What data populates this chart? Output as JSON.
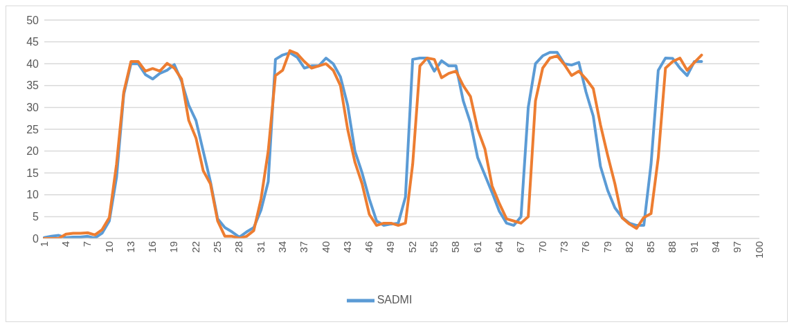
{
  "chart_data": {
    "type": "line",
    "categories": [
      "1",
      null,
      null,
      "4",
      null,
      null,
      "7",
      null,
      null,
      "10",
      null,
      null,
      "13",
      null,
      null,
      "16",
      null,
      null,
      "19",
      null,
      null,
      "22",
      null,
      null,
      "25",
      null,
      null,
      "28",
      null,
      null,
      "31",
      null,
      null,
      "34",
      null,
      null,
      "37",
      null,
      null,
      "40",
      null,
      null,
      "43",
      null,
      null,
      "46",
      null,
      null,
      "49",
      null,
      null,
      "52",
      null,
      null,
      "55",
      null,
      null,
      "58",
      null,
      null,
      "61",
      null,
      null,
      "64",
      null,
      null,
      "67",
      null,
      null,
      "70",
      null,
      null,
      "73",
      null,
      null,
      "76",
      null,
      null,
      "79",
      null,
      null,
      "82",
      null,
      null,
      "85",
      null,
      null,
      "88",
      null,
      null,
      "91",
      null,
      null,
      "94",
      null,
      null,
      "97",
      null,
      null,
      "100"
    ],
    "series": [
      {
        "name": "SADMI",
        "color": "#5b9bd5",
        "values": [
          0.2,
          0.5,
          0.7,
          0.2,
          0.3,
          0.3,
          0.5,
          0.1,
          1.2,
          4,
          14,
          33,
          40,
          40,
          37.5,
          36.5,
          37.8,
          38.5,
          39.8,
          36,
          30.5,
          27,
          20,
          13,
          4.5,
          2.5,
          1.5,
          0.3,
          1.5,
          2.5,
          6.5,
          13,
          41,
          42,
          42.5,
          41.5,
          39,
          39.5,
          39.5,
          41.3,
          40,
          37,
          30.5,
          20,
          15,
          9,
          4,
          3,
          3.3,
          3.5,
          9.5,
          41,
          41.3,
          41.3,
          38.3,
          40.7,
          39.5,
          39.5,
          31.5,
          26.5,
          18.5,
          14.5,
          10.5,
          6.2,
          3.5,
          3,
          5,
          30,
          40,
          41.8,
          42.6,
          42.6,
          40,
          39.7,
          40.3,
          33.5,
          28,
          16.5,
          11,
          7,
          4.8,
          3.5,
          3,
          3,
          17,
          38.5,
          41.3,
          41.2,
          39,
          37.3,
          40.5,
          40.5,
          null,
          null,
          null,
          null,
          null,
          null,
          null,
          null
        ]
      },
      {
        "color": "#ed7d31",
        "values": [
          0,
          0,
          0,
          1,
          1.2,
          1.2,
          1.3,
          0.8,
          2,
          4.8,
          17,
          33.5,
          40.5,
          40.5,
          38.3,
          38.9,
          38.3,
          40.1,
          39,
          36.5,
          27,
          23,
          15.5,
          12.5,
          4,
          0.5,
          0.5,
          0,
          0.5,
          1.8,
          9,
          20,
          37.3,
          38.5,
          43,
          42.3,
          40.5,
          39,
          39.5,
          40,
          38.5,
          35,
          25,
          17.5,
          12.5,
          5.5,
          3,
          3.5,
          3.5,
          3,
          3.5,
          17,
          39.5,
          41.3,
          41,
          36.8,
          37.8,
          38.3,
          35,
          32.5,
          25,
          20.5,
          12,
          8,
          4.5,
          4,
          3.5,
          5,
          31.5,
          39,
          41.3,
          41.8,
          39.8,
          37.3,
          38.3,
          36.5,
          34.3,
          26,
          19,
          12.5,
          4.7,
          3.3,
          2.3,
          4.8,
          5.7,
          18.5,
          39,
          40.5,
          41.3,
          38.5,
          40.3,
          42,
          null,
          null,
          null,
          null,
          null,
          null,
          null,
          null
        ]
      }
    ],
    "ylim": [
      0,
      50
    ],
    "yticks": [
      0,
      5,
      10,
      15,
      20,
      25,
      30,
      35,
      40,
      45,
      50
    ],
    "grid": "y",
    "legend": "bottom",
    "marker": "none",
    "line_style": "solid"
  }
}
